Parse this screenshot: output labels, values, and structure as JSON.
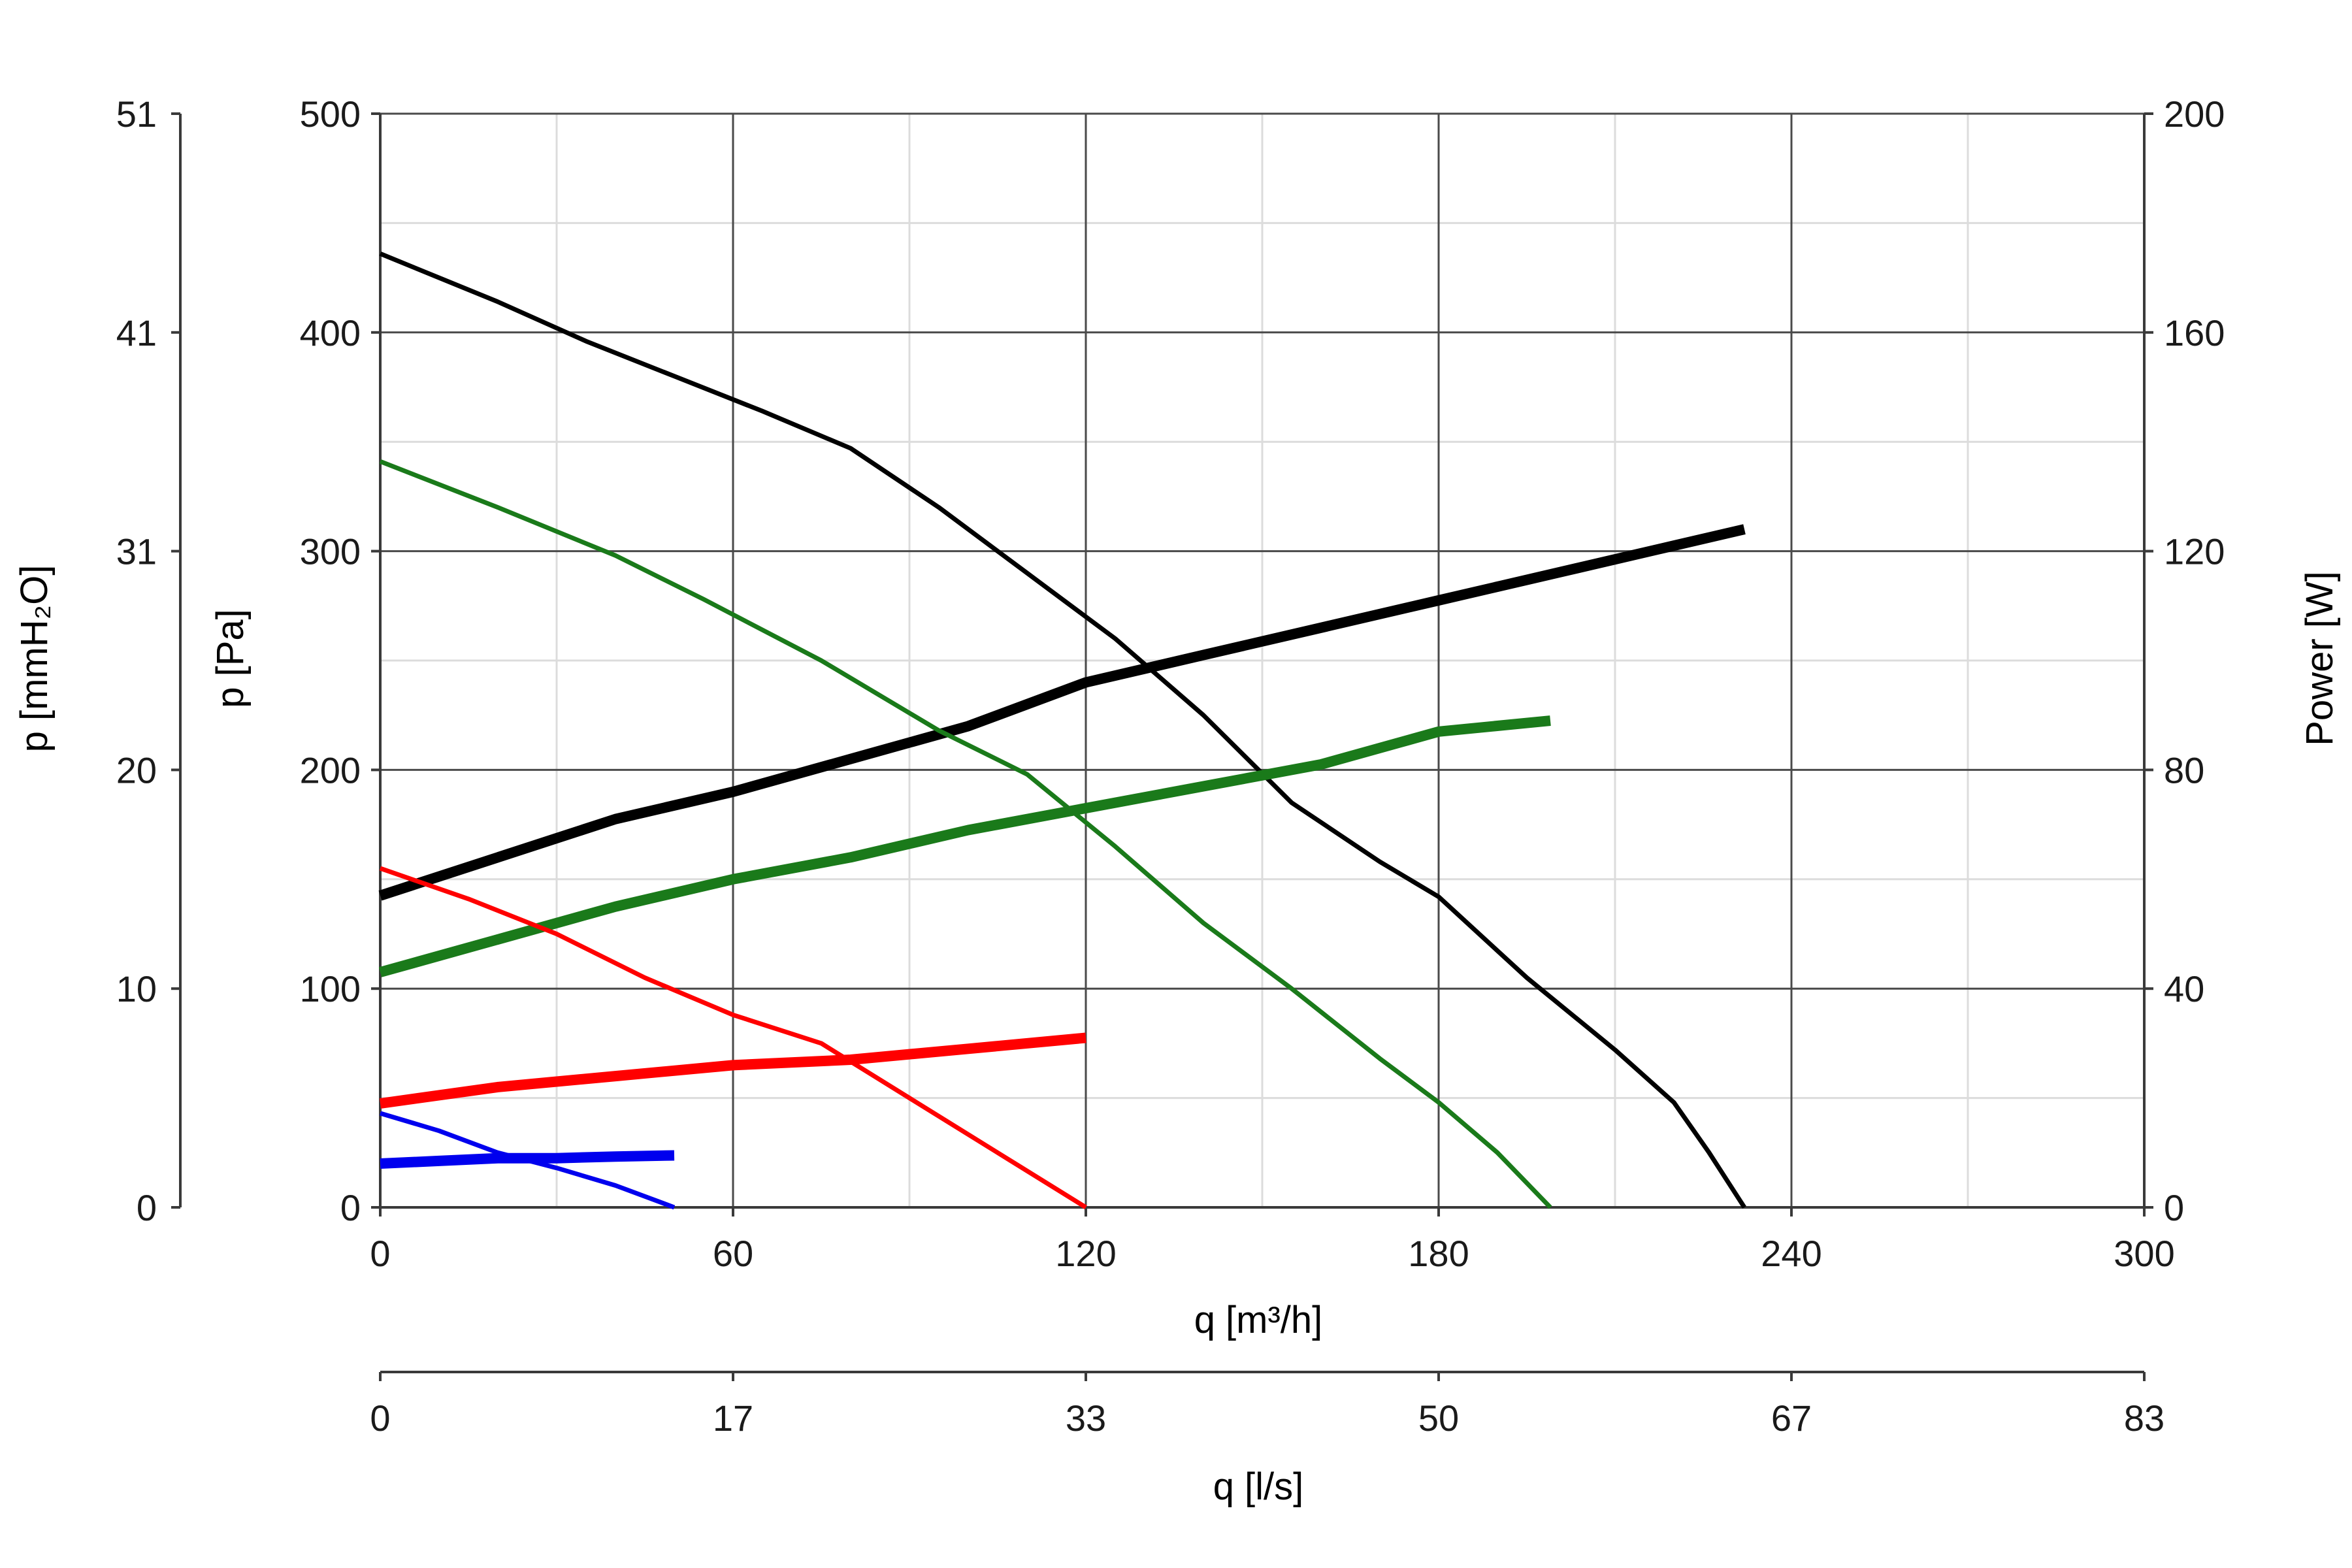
{
  "chart_data": {
    "type": "line",
    "x_axis": {
      "label": "q [m³/h]",
      "range": [
        0,
        300
      ],
      "ticks": [
        "0",
        "60",
        "120",
        "180",
        "240",
        "300"
      ]
    },
    "x2_axis": {
      "label": "q [l/s]",
      "ticks": [
        "0",
        "17",
        "33",
        "50",
        "67",
        "83"
      ]
    },
    "y_axis": {
      "label": "p [Pa]",
      "range": [
        0,
        500
      ],
      "ticks": [
        "0",
        "100",
        "200",
        "300",
        "400",
        "500"
      ]
    },
    "y_left2_axis": {
      "label": "p [mmH₂O]",
      "ticks": [
        "0",
        "10",
        "20",
        "31",
        "41",
        "51"
      ]
    },
    "y_right_axis": {
      "label": "Power [W]",
      "range": [
        0,
        200
      ],
      "ticks": [
        "0",
        "40",
        "80",
        "120",
        "160",
        "200"
      ]
    },
    "grid": true,
    "series": [
      {
        "kind": "pressure",
        "color": "#000000",
        "axis": "pressure",
        "x": [
          0,
          10,
          20,
          35,
          50,
          65,
          80,
          95,
          110,
          125,
          140,
          155,
          170,
          180,
          195,
          210,
          220,
          226,
          232
        ],
        "y": [
          436,
          425,
          414,
          396,
          380,
          364,
          347,
          320,
          290,
          260,
          225,
          185,
          158,
          142,
          105,
          72,
          48,
          25,
          0
        ]
      },
      {
        "kind": "power",
        "color": "#000000",
        "axis": "power",
        "x": [
          0,
          20,
          40,
          60,
          80,
          100,
          120,
          140,
          160,
          180,
          200,
          220,
          232
        ],
        "y": [
          57,
          64,
          71,
          76,
          82,
          88,
          96,
          101,
          106,
          111,
          116,
          121,
          124
        ]
      },
      {
        "kind": "pressure",
        "color": "#1a7a1a",
        "axis": "pressure",
        "x": [
          0,
          20,
          40,
          55,
          75,
          95,
          110,
          125,
          140,
          155,
          170,
          180,
          190,
          199
        ],
        "y": [
          341,
          320,
          298,
          278,
          250,
          218,
          198,
          165,
          130,
          100,
          68,
          48,
          25,
          0
        ]
      },
      {
        "kind": "power",
        "color": "#1a7a1a",
        "axis": "power",
        "x": [
          0,
          20,
          40,
          60,
          80,
          100,
          120,
          140,
          160,
          180,
          199
        ],
        "y": [
          43,
          49,
          55,
          60,
          64,
          69,
          73,
          77,
          81,
          87,
          89
        ]
      },
      {
        "kind": "pressure",
        "color": "#ff0000",
        "axis": "pressure",
        "x": [
          0,
          15,
          30,
          45,
          60,
          75,
          90,
          105,
          120
        ],
        "y": [
          155,
          141,
          125,
          105,
          88,
          75,
          50,
          25,
          0
        ]
      },
      {
        "kind": "power",
        "color": "#ff0000",
        "axis": "power",
        "x": [
          0,
          20,
          40,
          60,
          80,
          100,
          120
        ],
        "y": [
          19,
          22,
          24,
          26,
          27,
          29,
          31
        ]
      },
      {
        "kind": "pressure",
        "color": "#0000ee",
        "axis": "pressure",
        "x": [
          0,
          10,
          20,
          30,
          40,
          50
        ],
        "y": [
          43,
          35,
          25,
          18,
          10,
          0
        ]
      },
      {
        "kind": "power",
        "color": "#0000ee",
        "axis": "power",
        "x": [
          0,
          10,
          20,
          30,
          40,
          50
        ],
        "y": [
          8,
          8.5,
          9,
          9,
          9.3,
          9.5
        ]
      }
    ]
  }
}
